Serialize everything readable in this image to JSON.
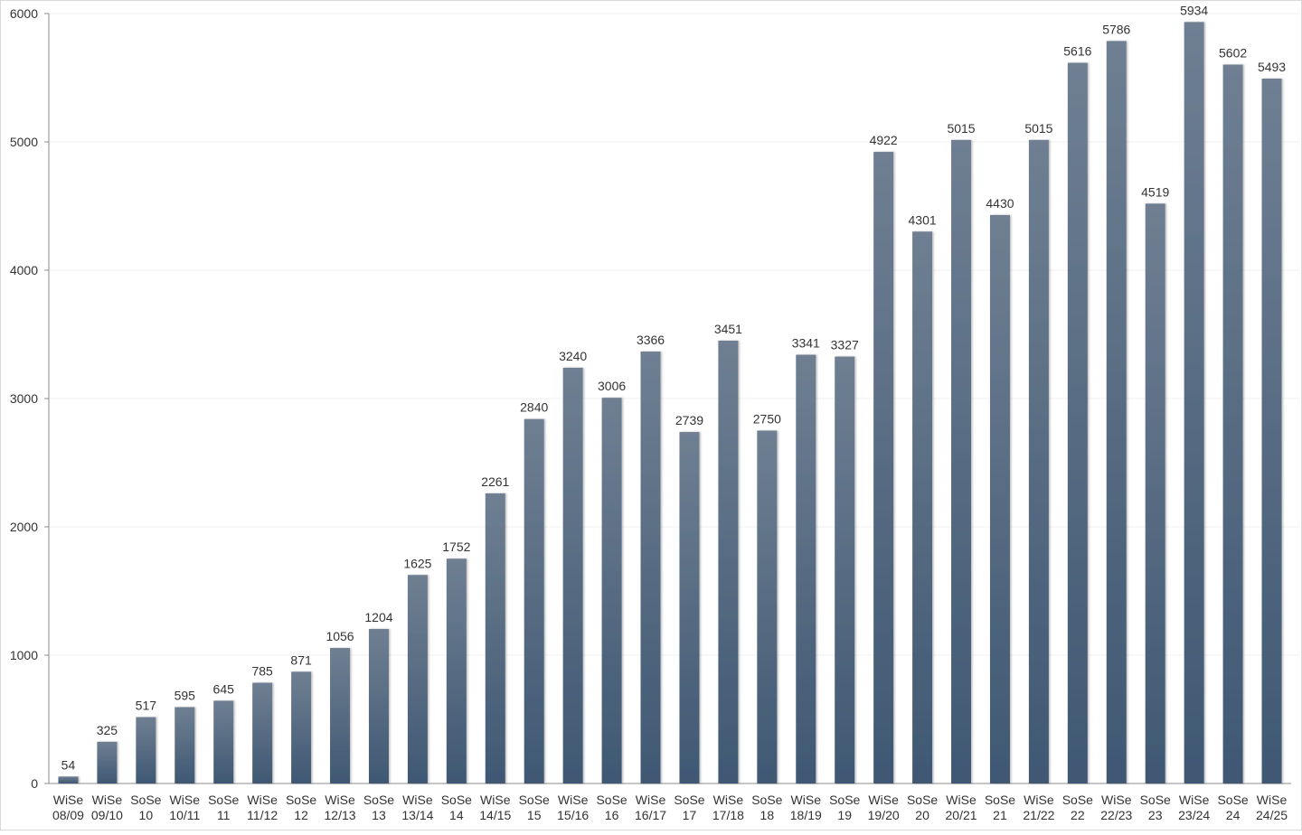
{
  "chart_data": {
    "type": "bar",
    "title": "",
    "xlabel": "",
    "ylabel": "",
    "ylim": [
      0,
      6000
    ],
    "yticks": [
      "0",
      "1000",
      "2000",
      "3000",
      "4000",
      "5000",
      "6000"
    ],
    "grid": true,
    "legend": "none",
    "bar_color_top": "#6f7f92",
    "bar_color_bottom": "#3f5873",
    "categories": [
      [
        "WiSe",
        "08/09"
      ],
      [
        "WiSe",
        "09/10"
      ],
      [
        "SoSe",
        "10"
      ],
      [
        "WiSe",
        "10/11"
      ],
      [
        "SoSe",
        "11"
      ],
      [
        "WiSe",
        "11/12"
      ],
      [
        "SoSe",
        "12"
      ],
      [
        "WiSe",
        "12/13"
      ],
      [
        "SoSe",
        "13"
      ],
      [
        "WiSe",
        "13/14"
      ],
      [
        "SoSe",
        "14"
      ],
      [
        "WiSe",
        "14/15"
      ],
      [
        "SoSe",
        "15"
      ],
      [
        "WiSe",
        "15/16"
      ],
      [
        "SoSe",
        "16"
      ],
      [
        "WiSe",
        "16/17"
      ],
      [
        "SoSe",
        "17"
      ],
      [
        "WiSe",
        "17/18"
      ],
      [
        "SoSe",
        "18"
      ],
      [
        "WiSe",
        "18/19"
      ],
      [
        "SoSe",
        "19"
      ],
      [
        "WiSe",
        "19/20"
      ],
      [
        "SoSe",
        "20"
      ],
      [
        "WiSe",
        "20/21"
      ],
      [
        "SoSe",
        "21"
      ],
      [
        "WiSe",
        "21/22"
      ],
      [
        "SoSe",
        "22"
      ],
      [
        "WiSe",
        "22/23"
      ],
      [
        "SoSe",
        "23"
      ],
      [
        "WiSe",
        "23/24"
      ],
      [
        "SoSe",
        "24"
      ],
      [
        "WiSe",
        "24/25"
      ]
    ],
    "values": [
      54,
      325,
      517,
      595,
      645,
      785,
      871,
      1056,
      1204,
      1625,
      1752,
      2261,
      2840,
      3240,
      3006,
      3366,
      2739,
      3451,
      2750,
      3341,
      3327,
      4922,
      4301,
      5015,
      4430,
      5015,
      5616,
      5786,
      4519,
      5934,
      5602,
      5493
    ]
  }
}
